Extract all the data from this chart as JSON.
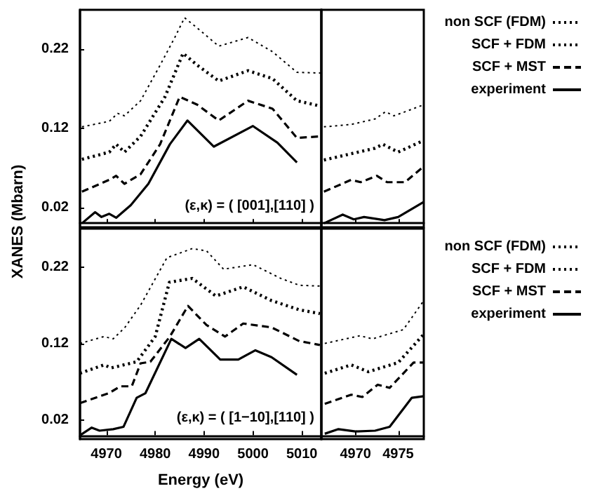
{
  "chart_data": [
    {
      "type": "line",
      "ylabel": "XANES (Mbarn)",
      "xlim": [
        4964.6,
        5014
      ],
      "xticks": [
        4970,
        4980,
        4990,
        5000,
        5010
      ],
      "ylim": [
        -0.005,
        0.27
      ],
      "yticks": [
        0.02,
        0.12,
        0.22
      ],
      "tick_labels": "y",
      "grid": false,
      "legend": false,
      "annotations": [
        "(ε,κ) = ( [001],[110] )"
      ],
      "series": [
        {
          "color": "#000000",
          "line_style": "dotted",
          "x": [
            4965,
            4970.6,
            4972.3,
            4973.7,
            4977,
            4981,
            4984,
            4986,
            4988.6,
            4993,
            4999,
            5004,
            5009,
            5014
          ],
          "values": [
            0.122,
            0.129,
            0.139,
            0.136,
            0.155,
            0.2,
            0.235,
            0.26,
            0.247,
            0.224,
            0.235,
            0.217,
            0.191,
            0.19
          ]
        },
        {
          "color": "#000000",
          "line_style": "dotted",
          "x": [
            4965,
            4970.6,
            4972,
            4973.7,
            4977,
            4982,
            4985.7,
            4988.6,
            4993,
            4999,
            5004,
            5009,
            5014
          ],
          "values": [
            0.081,
            0.09,
            0.1,
            0.09,
            0.11,
            0.16,
            0.215,
            0.2,
            0.18,
            0.193,
            0.183,
            0.155,
            0.148
          ]
        },
        {
          "color": "#000000",
          "line_style": "dashed",
          "x": [
            4965,
            4970.6,
            4972,
            4973.7,
            4977,
            4981,
            4985,
            4988.6,
            4993,
            4999,
            5004,
            5009,
            5014
          ],
          "values": [
            0.04,
            0.055,
            0.06,
            0.05,
            0.062,
            0.1,
            0.16,
            0.15,
            0.13,
            0.155,
            0.145,
            0.108,
            0.11
          ]
        },
        {
          "color": "#000000",
          "line_style": "solid",
          "x": [
            4965,
            4967.7,
            4969,
            4970.6,
            4972,
            4975,
            4978.6,
            4983,
            4986.6,
            4992,
            5000,
            5005,
            5009
          ],
          "values": [
            0.0,
            0.014,
            0.008,
            0.012,
            0.007,
            0.023,
            0.05,
            0.1,
            0.13,
            0.097,
            0.123,
            0.102,
            0.077
          ]
        }
      ]
    },
    {
      "type": "line",
      "xlim": [
        4966,
        4978
      ],
      "xticks": [
        4970,
        4975
      ],
      "ylim": [
        -0.005,
        0.27
      ],
      "tick_labels": false,
      "grid": false,
      "legend": "right",
      "series": [
        {
          "name": "non SCF (FDM)",
          "color": "#000000",
          "line_style": "dotted",
          "x": [
            4966.3,
            4969.5,
            4972.3,
            4973.5,
            4974.5,
            4975.8,
            4978
          ],
          "values": [
            0.122,
            0.125,
            0.132,
            0.141,
            0.136,
            0.141,
            0.15
          ]
        },
        {
          "name": "SCF + FDM",
          "color": "#000000",
          "line_style": "dotted",
          "x": [
            4966.3,
            4969.5,
            4972.3,
            4973.2,
            4975,
            4978
          ],
          "values": [
            0.08,
            0.088,
            0.095,
            0.1,
            0.09,
            0.105
          ]
        },
        {
          "name": "SCF + MST",
          "color": "#000000",
          "line_style": "dashed",
          "x": [
            4966.3,
            4969.5,
            4970.6,
            4972.5,
            4973.7,
            4975.8,
            4978
          ],
          "values": [
            0.04,
            0.055,
            0.052,
            0.06,
            0.052,
            0.052,
            0.072
          ]
        },
        {
          "name": "experiment",
          "color": "#000000",
          "line_style": "solid",
          "x": [
            4966.3,
            4968.5,
            4969.8,
            4971,
            4973.4,
            4975,
            4978
          ],
          "values": [
            0.0,
            0.011,
            0.005,
            0.008,
            0.004,
            0.008,
            0.027
          ]
        }
      ]
    },
    {
      "type": "line",
      "xlabel": "Energy (eV)",
      "xlim": [
        4964.6,
        5014
      ],
      "xticks": [
        4970,
        4980,
        4990,
        5000,
        5010
      ],
      "ylim": [
        -0.005,
        0.27
      ],
      "yticks": [
        0.02,
        0.12,
        0.22
      ],
      "grid": false,
      "legend": false,
      "annotations": [
        "(ε,κ) = ( [1−10],[110] )"
      ],
      "series": [
        {
          "color": "#000000",
          "line_style": "dotted",
          "x": [
            4964.6,
            4969.5,
            4971.4,
            4973.8,
            4977,
            4982.4,
            4987.6,
            4990.5,
            4994,
            5000,
            5005.7,
            5009.5,
            5013.7
          ],
          "values": [
            0.12,
            0.129,
            0.126,
            0.141,
            0.17,
            0.232,
            0.244,
            0.241,
            0.217,
            0.223,
            0.205,
            0.196,
            0.195
          ]
        },
        {
          "color": "#000000",
          "line_style": "dotted",
          "x": [
            4964.6,
            4969.5,
            4971,
            4976.2,
            4980,
            4982.9,
            4987.6,
            4992.4,
            4998,
            5003.8,
            5009.5,
            5013.7
          ],
          "values": [
            0.081,
            0.092,
            0.088,
            0.096,
            0.129,
            0.2,
            0.205,
            0.182,
            0.194,
            0.176,
            0.164,
            0.159
          ]
        },
        {
          "color": "#000000",
          "line_style": "dashed",
          "x": [
            4964.6,
            4970.5,
            4972.9,
            4975.2,
            4977,
            4979,
            4983,
            4986.7,
            4990.5,
            4994.3,
            4998,
            5003.8,
            5009.5,
            5013.7
          ],
          "values": [
            0.042,
            0.055,
            0.064,
            0.064,
            0.094,
            0.096,
            0.129,
            0.169,
            0.144,
            0.129,
            0.146,
            0.141,
            0.123,
            0.118
          ]
        },
        {
          "color": "#000000",
          "line_style": "solid",
          "x": [
            4964.6,
            4967,
            4968.6,
            4971.4,
            4973.5,
            4976.2,
            4978,
            4983.3,
            4986.2,
            4989,
            4993.3,
            4997,
            5000.5,
            5003.8,
            5009
          ],
          "values": [
            0.0,
            0.01,
            0.006,
            0.008,
            0.011,
            0.049,
            0.055,
            0.126,
            0.114,
            0.126,
            0.099,
            0.099,
            0.111,
            0.102,
            0.079
          ]
        }
      ]
    },
    {
      "type": "line",
      "xlim": [
        4966,
        4978
      ],
      "xticks": [
        4970,
        4975
      ],
      "ylim": [
        -0.005,
        0.27
      ],
      "tick_labels": "x",
      "grid": false,
      "legend": "right",
      "series": [
        {
          "name": "non SCF (FDM)",
          "color": "#000000",
          "line_style": "dotted",
          "x": [
            4966.4,
            4970.5,
            4972,
            4975.6,
            4978
          ],
          "values": [
            0.12,
            0.13,
            0.126,
            0.138,
            0.176
          ]
        },
        {
          "name": "SCF + FDM",
          "color": "#000000",
          "line_style": "dotted",
          "x": [
            4966.4,
            4969.5,
            4971.5,
            4975,
            4978
          ],
          "values": [
            0.081,
            0.092,
            0.083,
            0.095,
            0.132
          ]
        },
        {
          "name": "SCF + MST",
          "color": "#000000",
          "line_style": "dashed",
          "x": [
            4966.4,
            4969.5,
            4970.8,
            4972.6,
            4974,
            4976.8,
            4978
          ],
          "values": [
            0.041,
            0.053,
            0.05,
            0.066,
            0.062,
            0.095,
            0.095
          ]
        },
        {
          "name": "experiment",
          "color": "#000000",
          "line_style": "solid",
          "x": [
            4966.4,
            4968,
            4970,
            4972.3,
            4974,
            4976.6,
            4978
          ],
          "values": [
            0.002,
            0.008,
            0.005,
            0.006,
            0.011,
            0.049,
            0.051
          ]
        }
      ]
    }
  ]
}
